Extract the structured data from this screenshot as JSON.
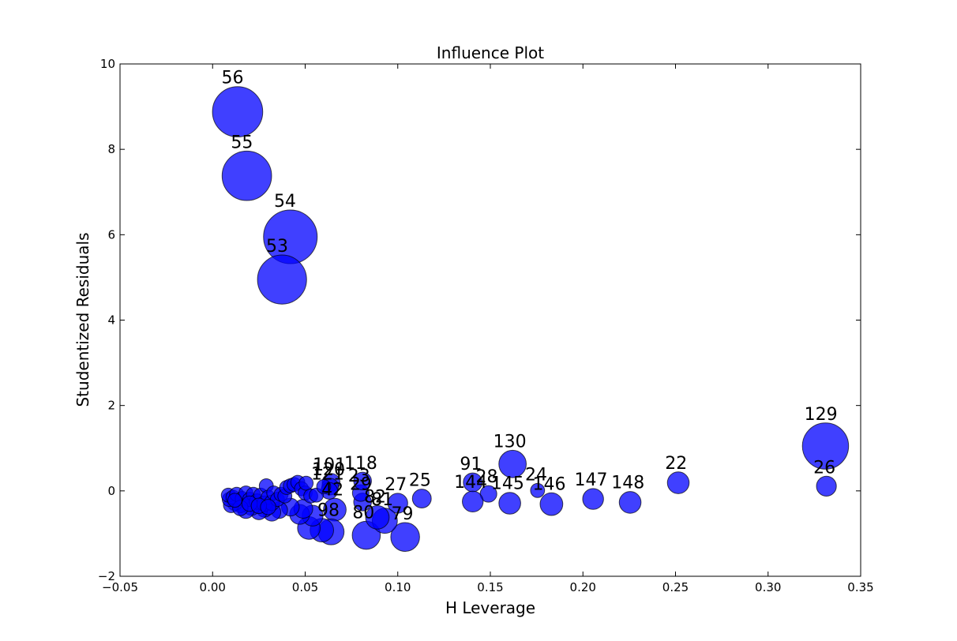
{
  "chart_data": {
    "type": "scatter",
    "title": "Influence Plot",
    "xlabel": "H Leverage",
    "ylabel": "Studentized Residuals",
    "xlim": [
      -0.05,
      0.35
    ],
    "ylim": [
      -2,
      10
    ],
    "xticks": [
      "−0.05",
      "0.00",
      "0.05",
      "0.10",
      "0.15",
      "0.20",
      "0.25",
      "0.30",
      "0.35"
    ],
    "xtick_values": [
      -0.05,
      0.0,
      0.05,
      0.1,
      0.15,
      0.2,
      0.25,
      0.3,
      0.35
    ],
    "yticks": [
      "−2",
      "0",
      "2",
      "4",
      "6",
      "8",
      "10"
    ],
    "ytick_values": [
      -2,
      0,
      2,
      4,
      6,
      8,
      10
    ],
    "grid": false,
    "point_color": "#0000ff",
    "size_encodes": "Cook's distance",
    "points": [
      {
        "label": "56",
        "x": 0.0135,
        "y": 8.88,
        "size": 0.64
      },
      {
        "label": "55",
        "x": 0.0185,
        "y": 7.38,
        "size": 0.62
      },
      {
        "label": "54",
        "x": 0.042,
        "y": 5.95,
        "size": 0.73
      },
      {
        "label": "53",
        "x": 0.0375,
        "y": 4.95,
        "size": 0.61
      },
      {
        "label": "129",
        "x": 0.331,
        "y": 1.05,
        "size": 0.54
      },
      {
        "label": "26",
        "x": 0.3315,
        "y": 0.11,
        "size": 0.1
      },
      {
        "label": "130",
        "x": 0.162,
        "y": 0.63,
        "size": 0.19
      },
      {
        "label": "22",
        "x": 0.2515,
        "y": 0.19,
        "size": 0.12
      },
      {
        "label": "91",
        "x": 0.1405,
        "y": 0.2,
        "size": 0.09
      },
      {
        "label": "28",
        "x": 0.149,
        "y": -0.07,
        "size": 0.07
      },
      {
        "label": "144",
        "x": 0.1405,
        "y": -0.25,
        "size": 0.11
      },
      {
        "label": "145",
        "x": 0.1605,
        "y": -0.29,
        "size": 0.12
      },
      {
        "label": "24",
        "x": 0.1755,
        "y": 0.01,
        "size": 0.05
      },
      {
        "label": "146",
        "x": 0.183,
        "y": -0.31,
        "size": 0.13
      },
      {
        "label": "147",
        "x": 0.2055,
        "y": -0.19,
        "size": 0.11
      },
      {
        "label": "148",
        "x": 0.2255,
        "y": -0.27,
        "size": 0.12
      },
      {
        "label": "25",
        "x": 0.113,
        "y": -0.18,
        "size": 0.09
      },
      {
        "label": "27",
        "x": 0.1,
        "y": -0.29,
        "size": 0.1
      },
      {
        "label": "79",
        "x": 0.104,
        "y": -1.08,
        "size": 0.21
      },
      {
        "label": "80",
        "x": 0.083,
        "y": -1.04,
        "size": 0.2
      },
      {
        "label": "81",
        "x": 0.093,
        "y": -0.7,
        "size": 0.16
      },
      {
        "label": "82",
        "x": 0.089,
        "y": -0.62,
        "size": 0.14
      },
      {
        "label": "29",
        "x": 0.081,
        "y": -0.26,
        "size": 0.08
      },
      {
        "label": "23",
        "x": 0.08,
        "y": -0.05,
        "size": 0.07
      },
      {
        "label": "118",
        "x": 0.081,
        "y": 0.23,
        "size": 0.08
      },
      {
        "label": "101",
        "x": 0.064,
        "y": 0.2,
        "size": 0.08
      },
      {
        "label": "120",
        "x": 0.0635,
        "y": 0.1,
        "size": 0.07
      },
      {
        "label": "121",
        "x": 0.063,
        "y": 0.0,
        "size": 0.07
      },
      {
        "label": "42",
        "x": 0.066,
        "y": -0.44,
        "size": 0.13
      },
      {
        "label": "98",
        "x": 0.064,
        "y": -0.96,
        "size": 0.17
      },
      {
        "label": "",
        "x": 0.059,
        "y": -0.92,
        "size": 0.14
      },
      {
        "label": "",
        "x": 0.052,
        "y": -0.87,
        "size": 0.13
      },
      {
        "label": "",
        "x": 0.054,
        "y": -0.58,
        "size": 0.11
      },
      {
        "label": "",
        "x": 0.047,
        "y": -0.55,
        "size": 0.1
      },
      {
        "label": "",
        "x": 0.049,
        "y": -0.42,
        "size": 0.09
      },
      {
        "label": "",
        "x": 0.042,
        "y": -0.38,
        "size": 0.08
      },
      {
        "label": "",
        "x": 0.036,
        "y": -0.45,
        "size": 0.07
      },
      {
        "label": "",
        "x": 0.032,
        "y": -0.5,
        "size": 0.08
      },
      {
        "label": "",
        "x": 0.028,
        "y": -0.42,
        "size": 0.07
      },
      {
        "label": "",
        "x": 0.025,
        "y": -0.48,
        "size": 0.07
      },
      {
        "label": "",
        "x": 0.021,
        "y": -0.38,
        "size": 0.07
      },
      {
        "label": "",
        "x": 0.018,
        "y": -0.45,
        "size": 0.07
      },
      {
        "label": "",
        "x": 0.015,
        "y": -0.33,
        "size": 0.06
      },
      {
        "label": "",
        "x": 0.012,
        "y": -0.28,
        "size": 0.06
      },
      {
        "label": "",
        "x": 0.01,
        "y": -0.33,
        "size": 0.06
      },
      {
        "label": "",
        "x": 0.009,
        "y": -0.2,
        "size": 0.05
      },
      {
        "label": "",
        "x": 0.0085,
        "y": -0.1,
        "size": 0.05
      },
      {
        "label": "",
        "x": 0.011,
        "y": -0.15,
        "size": 0.05
      },
      {
        "label": "",
        "x": 0.013,
        "y": -0.08,
        "size": 0.05
      },
      {
        "label": "",
        "x": 0.016,
        "y": -0.18,
        "size": 0.05
      },
      {
        "label": "",
        "x": 0.018,
        "y": -0.05,
        "size": 0.05
      },
      {
        "label": "",
        "x": 0.02,
        "y": -0.2,
        "size": 0.05
      },
      {
        "label": "",
        "x": 0.022,
        "y": -0.08,
        "size": 0.05
      },
      {
        "label": "",
        "x": 0.024,
        "y": -0.25,
        "size": 0.06
      },
      {
        "label": "",
        "x": 0.026,
        "y": -0.1,
        "size": 0.05
      },
      {
        "label": "",
        "x": 0.028,
        "y": -0.3,
        "size": 0.06
      },
      {
        "label": "",
        "x": 0.029,
        "y": 0.12,
        "size": 0.05
      },
      {
        "label": "",
        "x": 0.03,
        "y": -0.15,
        "size": 0.05
      },
      {
        "label": "",
        "x": 0.032,
        "y": -0.28,
        "size": 0.06
      },
      {
        "label": "",
        "x": 0.033,
        "y": -0.05,
        "size": 0.05
      },
      {
        "label": "",
        "x": 0.035,
        "y": -0.2,
        "size": 0.05
      },
      {
        "label": "",
        "x": 0.037,
        "y": -0.08,
        "size": 0.05
      },
      {
        "label": "",
        "x": 0.039,
        "y": -0.12,
        "size": 0.05
      },
      {
        "label": "",
        "x": 0.04,
        "y": 0.08,
        "size": 0.05
      },
      {
        "label": "",
        "x": 0.042,
        "y": 0.12,
        "size": 0.05
      },
      {
        "label": "",
        "x": 0.044,
        "y": 0.15,
        "size": 0.05
      },
      {
        "label": "",
        "x": 0.046,
        "y": 0.2,
        "size": 0.05
      },
      {
        "label": "",
        "x": 0.048,
        "y": 0.05,
        "size": 0.05
      },
      {
        "label": "",
        "x": 0.05,
        "y": -0.05,
        "size": 0.05
      },
      {
        "label": "",
        "x": 0.0505,
        "y": 0.18,
        "size": 0.05
      },
      {
        "label": "",
        "x": 0.053,
        "y": -0.12,
        "size": 0.05
      },
      {
        "label": "",
        "x": 0.056,
        "y": -0.1,
        "size": 0.05
      },
      {
        "label": "",
        "x": 0.06,
        "y": 0.1,
        "size": 0.05
      },
      {
        "label": "",
        "x": 0.015,
        "y": -0.4,
        "size": 0.06
      },
      {
        "label": "",
        "x": 0.02,
        "y": -0.3,
        "size": 0.06
      },
      {
        "label": "",
        "x": 0.012,
        "y": -0.22,
        "size": 0.05
      },
      {
        "label": "",
        "x": 0.025,
        "y": -0.35,
        "size": 0.06
      },
      {
        "label": "",
        "x": 0.03,
        "y": -0.38,
        "size": 0.06
      }
    ]
  }
}
